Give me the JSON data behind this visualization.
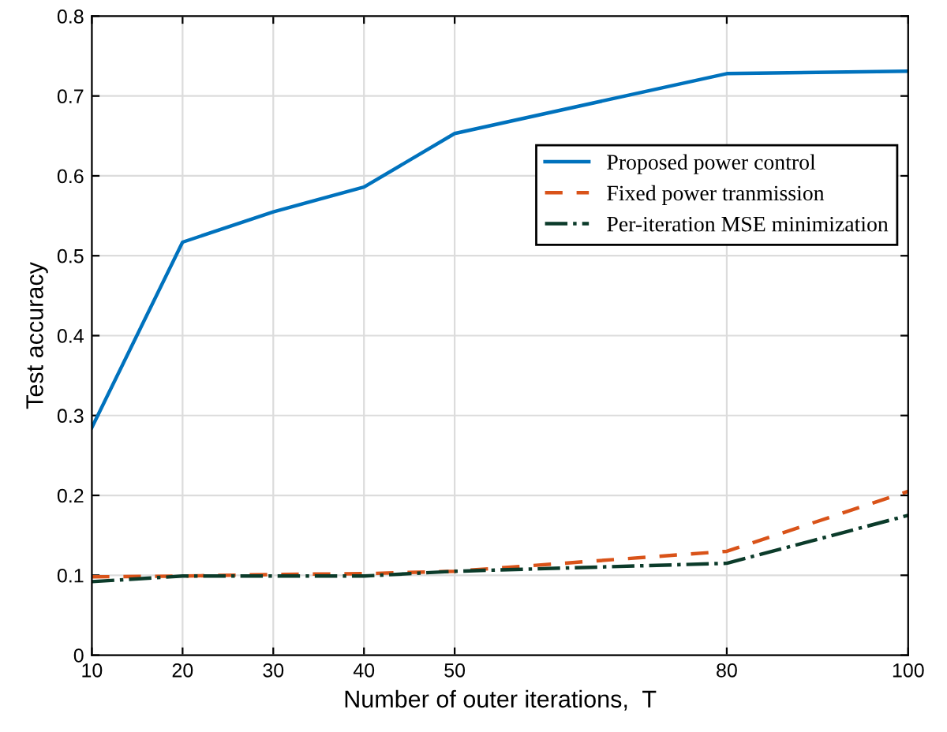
{
  "chart_data": {
    "type": "line",
    "xlabel": "Number of outer iterations,  T",
    "ylabel": "Test accuracy",
    "x": [
      10,
      20,
      30,
      40,
      50,
      80,
      100
    ],
    "series": [
      {
        "name": "Proposed power control",
        "color": "#0072bd",
        "line_style": "solid",
        "values": [
          0.285,
          0.517,
          0.555,
          0.586,
          0.653,
          0.728,
          0.731
        ]
      },
      {
        "name": "Fixed power tranmission",
        "color": "#d95319",
        "line_style": "dashed",
        "values": [
          0.098,
          0.099,
          0.101,
          0.102,
          0.105,
          0.13,
          0.205
        ]
      },
      {
        "name": "Per-iteration MSE minimization",
        "color": "#0b3b2a",
        "line_style": "dashdot",
        "values": [
          0.092,
          0.099,
          0.099,
          0.099,
          0.105,
          0.115,
          0.175
        ]
      }
    ],
    "xlim": [
      10,
      100
    ],
    "xticks": [
      10,
      20,
      30,
      40,
      50,
      80,
      100
    ],
    "ylim": [
      0,
      0.8
    ],
    "yticks": [
      0,
      0.1,
      0.2,
      0.3,
      0.4,
      0.5,
      0.6,
      0.7,
      0.8
    ],
    "grid": true,
    "legend": "right"
  }
}
